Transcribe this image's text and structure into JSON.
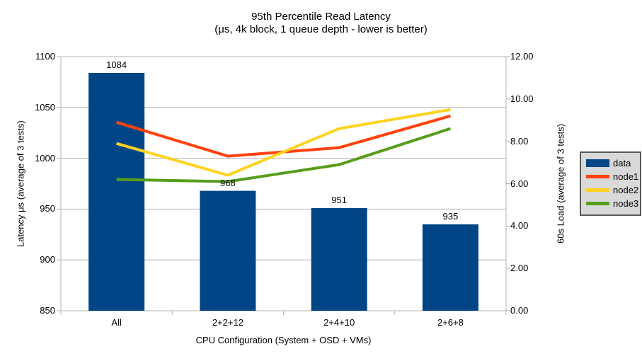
{
  "chart_data": {
    "type": "combo-bar-line",
    "title": "95th Percentile Read Latency",
    "subtitle": "(μs, 4k block, 1 queue depth - lower is better)",
    "categories": [
      "All",
      "2+2+12",
      "2+4+10",
      "2+6+8"
    ],
    "bar_series": {
      "name": "data",
      "color": "#004586",
      "axis": "left",
      "values": [
        1084,
        968,
        951,
        935
      ],
      "data_labels": [
        "1084",
        "968",
        "951",
        "935"
      ]
    },
    "line_series": [
      {
        "name": "node1",
        "color": "#FF420E",
        "axis": "right",
        "values": [
          8.9,
          7.3,
          7.7,
          9.2
        ]
      },
      {
        "name": "node2",
        "color": "#FFD320",
        "axis": "right",
        "values": [
          7.9,
          6.4,
          8.6,
          9.5
        ]
      },
      {
        "name": "node3",
        "color": "#579D1C",
        "axis": "right",
        "values": [
          6.2,
          6.1,
          6.9,
          8.6
        ]
      }
    ],
    "left_axis": {
      "title": "Latency μs (average of 3 tests)",
      "min": 850,
      "max": 1100,
      "step": 50,
      "tick_labels": [
        "1100",
        "1050",
        "1000",
        "950",
        "900",
        "850"
      ]
    },
    "right_axis": {
      "title": "60s Load (average of 3 tests)",
      "min": 0,
      "max": 12,
      "step": 2,
      "tick_labels": [
        "12.00",
        "10.00",
        "8.00",
        "6.00",
        "4.00",
        "2.00",
        "0.00"
      ]
    },
    "x_axis": {
      "title": "CPU Configuration (System + OSD + VMs)"
    },
    "grid": {
      "horizontal": true,
      "color": "#b3b3b3"
    },
    "legend": {
      "position": "right",
      "background": "#d9d9d9",
      "border": "#595959"
    },
    "colors": {
      "background": "#ffffff",
      "text": "#000000",
      "axis": "#b3b3b3"
    }
  }
}
